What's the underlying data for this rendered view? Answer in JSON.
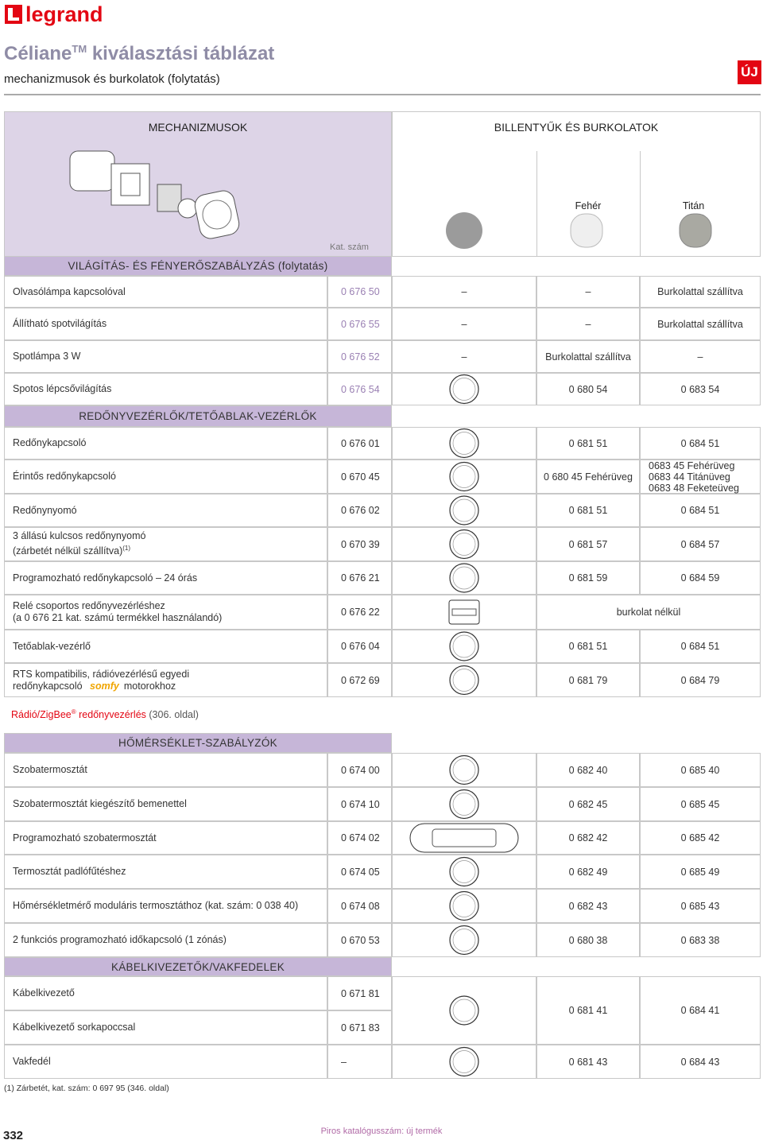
{
  "header": {
    "logo": "legrand",
    "title": "Céliane",
    "title_sup": "TM",
    "title_rest": " kiválasztási táblázat",
    "subtitle": "mechanizmusok és burkolatok (folytatás)",
    "badge": "ÚJ"
  },
  "table": {
    "col_mech": "MECHANIZMUSOK",
    "col_cover": "BILLENTYŰK ÉS BURKOLATOK",
    "col_white": "Fehér",
    "col_titan": "Titán",
    "col_cat": "Kat. szám",
    "sections": [
      {
        "title": "VILÁGÍTÁS- ÉS FÉNYERŐSZABÁLYZÁS (folytatás)",
        "rows": [
          {
            "label": [
              "Olvasólámpa kapcsolóval"
            ],
            "cat": "0 676 50",
            "icon": "–",
            "white": "–",
            "titan": "Burkolattal szállítva"
          },
          {
            "label": [
              "Állítható spotvilágítás"
            ],
            "cat": "0 676 55",
            "icon": "–",
            "white": "–",
            "titan": "Burkolattal szállítva"
          },
          {
            "label": [
              "Spotlámpa 3 W"
            ],
            "cat": "0 676 52",
            "icon": "–",
            "white": "Burkolattal szállítva",
            "titan": "–"
          },
          {
            "label": [
              "Spotos lépcsővilágítás"
            ],
            "cat": "0 676 54",
            "white": "0 680 54",
            "titan": "0 683 54"
          }
        ]
      },
      {
        "title": "REDŐNYVEZÉRLŐK/TETŐABLAK-VEZÉRLŐK",
        "rows": [
          {
            "label": [
              "Redőnykapcsoló"
            ],
            "cat": "0 676 01",
            "white": "0 681 51",
            "titan": "0 684 51"
          },
          {
            "label": [
              "Érintős redőnykapcsoló"
            ],
            "cat": "0 670 45",
            "white": "0 680 45 Fehérüveg",
            "titan": [
              "0683 45 Fehérüveg",
              "0683 44 Titánüveg",
              "0683 48 Feketeüveg"
            ]
          },
          {
            "label": [
              "Redőnynyomó"
            ],
            "cat": "0 676 02",
            "white": "0 681 51",
            "titan": "0 684 51"
          },
          {
            "label": [
              "3 állású kulcsos redőnynyomó",
              "(zárbetét nélkül szállítva)"
            ],
            "sup": "(1)",
            "cat": "0 670 39",
            "white": "0 681 57",
            "titan": "0 684 57"
          },
          {
            "label": [
              "Programozható redőnykapcsoló – 24 órás"
            ],
            "cat": "0 676 21",
            "white": "0 681 59",
            "titan": "0 684 59"
          },
          {
            "label": [
              "Relé csoportos redőnyvezérléshez",
              "(a 0 676 21 kat. számú termékkel használandó)"
            ],
            "cat": "0 676 22",
            "span": "burkolat nélkül"
          },
          {
            "label": [
              "Tetőablak-vezérlő"
            ],
            "cat": "0 676 04",
            "white": "0 681 51",
            "titan": "0 684 51"
          },
          {
            "label": [
              "RTS kompatibilis, rádióvezérlésű egyedi",
              "redőnykapcsoló"
            ],
            "logo": "somfy",
            "label_end": "motorokhoz",
            "cat": "0 672 69",
            "white": "0 681 79",
            "titan": "0 684 79"
          }
        ]
      },
      {
        "title": "HŐMÉRSÉKLET-SZABÁLYZÓK",
        "rows": [
          {
            "label": [
              "Szobatermosztát"
            ],
            "cat": "0 674 00",
            "white": "0 682 40",
            "titan": "0 685 40"
          },
          {
            "label": [
              "Szobatermosztát kiegészítő bemenettel"
            ],
            "cat": "0 674 10",
            "white": "0 682 45",
            "titan": "0 685 45"
          },
          {
            "label": [
              "Programozható szobatermosztát"
            ],
            "cat": "0 674 02",
            "white": "0 682 42",
            "titan": "0 685 42"
          },
          {
            "label": [
              "Termosztát padlófűtéshez"
            ],
            "cat": "0 674 05",
            "white": "0 682 49",
            "titan": "0 685 49"
          },
          {
            "label": [
              "Hőmérsékletmérő moduláris termosztáthoz (kat. szám: 0 038 40)"
            ],
            "cat": "0 674 08",
            "white": "0 682 43",
            "titan": "0 685 43"
          },
          {
            "label": [
              "2 funkciós programozható időkapcsoló (1 zónás)"
            ],
            "cat": "0 670 53",
            "white": "0 680 38",
            "titan": "0 683 38"
          }
        ]
      },
      {
        "title": "KÁBELKIVEZETŐK/VAKFEDELEK",
        "rows": [
          {
            "label": [
              "Kábelkivezető"
            ],
            "cat": "0 671 81",
            "white": "0 681 41",
            "titan": "0 684 41"
          },
          {
            "label": [
              "Kábelkivezető sorkapoccsal"
            ],
            "cat": "0 671 83"
          },
          {
            "label": [
              "Vakfedél"
            ],
            "cat": "–",
            "white": "0 681 43",
            "titan": "0 684 43"
          }
        ]
      }
    ]
  },
  "note": {
    "red": "Rádió/ZigBee",
    "sup": "®",
    "red2": " redőnyvezérlés",
    "rest": " (306. oldal)"
  },
  "footnote": "(1) Zárbetét, kat. szám: 0 697 95 (346. oldal)",
  "footer": {
    "page": "332",
    "legend": "Piros katalógusszám: új termék"
  }
}
